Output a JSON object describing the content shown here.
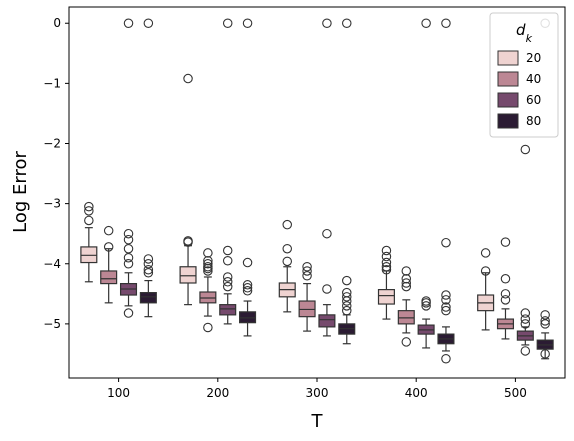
{
  "chart_data": {
    "type": "box",
    "xlabel": "T",
    "ylabel": "Log Error",
    "x_categories": [
      "100",
      "200",
      "300",
      "400",
      "500"
    ],
    "ylim": [
      -5.9,
      0.27
    ],
    "yticks": [
      0,
      -1,
      -2,
      -3,
      -4,
      -5
    ],
    "ytick_labels": [
      "0",
      "−1",
      "−2",
      "−3",
      "−4",
      "−5"
    ],
    "grid": false,
    "legend": {
      "title_base": "d",
      "title_sub": "k",
      "placement": "top-right",
      "entries": [
        "20",
        "40",
        "60",
        "80"
      ]
    },
    "hue_colors": [
      "#efd3d1",
      "#bc8794",
      "#764a6d",
      "#2b1b33"
    ],
    "series": [
      {
        "name": "20",
        "boxes": [
          {
            "q1": -3.98,
            "median": -3.86,
            "q3": -3.72,
            "whisker_low": -4.3,
            "whisker_high": -3.4,
            "outliers": [
              -3.05,
              -3.12,
              -3.28
            ]
          },
          {
            "q1": -4.32,
            "median": -4.2,
            "q3": -4.05,
            "whisker_low": -4.68,
            "whisker_high": -3.7,
            "outliers": [
              -0.92,
              -3.62,
              -3.64
            ]
          },
          {
            "q1": -4.55,
            "median": -4.43,
            "q3": -4.32,
            "whisker_low": -4.8,
            "whisker_high": -4.05,
            "outliers": [
              -3.35,
              -3.75,
              -3.96
            ]
          },
          {
            "q1": -4.67,
            "median": -4.53,
            "q3": -4.43,
            "whisker_low": -4.92,
            "whisker_high": -4.12,
            "outliers": [
              -3.78,
              -3.88,
              -3.98,
              -4.05,
              -4.1
            ]
          },
          {
            "q1": -4.78,
            "median": -4.65,
            "q3": -4.52,
            "whisker_low": -5.1,
            "whisker_high": -4.15,
            "outliers": [
              -3.82,
              -4.12
            ]
          }
        ]
      },
      {
        "name": "40",
        "boxes": [
          {
            "q1": -4.33,
            "median": -4.25,
            "q3": -4.12,
            "whisker_low": -4.65,
            "whisker_high": -3.75,
            "outliers": [
              -3.45,
              -3.72
            ]
          },
          {
            "q1": -4.65,
            "median": -4.57,
            "q3": -4.47,
            "whisker_low": -4.87,
            "whisker_high": -4.22,
            "outliers": [
              -3.82,
              -3.95,
              -4.0,
              -4.05,
              -4.08,
              -4.12,
              -5.06
            ]
          },
          {
            "q1": -4.88,
            "median": -4.76,
            "q3": -4.62,
            "whisker_low": -5.12,
            "whisker_high": -4.33,
            "outliers": [
              -4.05,
              -4.12,
              -4.2
            ]
          },
          {
            "q1": -5.0,
            "median": -4.9,
            "q3": -4.78,
            "whisker_low": -5.15,
            "whisker_high": -4.6,
            "outliers": [
              -4.12,
              -4.25,
              -4.32,
              -4.38,
              -5.3
            ]
          },
          {
            "q1": -5.08,
            "median": -5.0,
            "q3": -4.92,
            "whisker_low": -5.25,
            "whisker_high": -4.75,
            "outliers": [
              -3.64,
              -4.25,
              -4.5,
              -4.6
            ]
          }
        ]
      },
      {
        "name": "60",
        "boxes": [
          {
            "q1": -4.52,
            "median": -4.42,
            "q3": -4.33,
            "whisker_low": -4.7,
            "whisker_high": -4.15,
            "outliers": [
              0.0,
              -3.5,
              -3.6,
              -3.75,
              -3.9,
              -4.0,
              -4.82
            ]
          },
          {
            "q1": -4.85,
            "median": -4.75,
            "q3": -4.68,
            "whisker_low": -5.0,
            "whisker_high": -4.5,
            "outliers": [
              0.0,
              -3.78,
              -3.95,
              -4.22,
              -4.3,
              -4.38
            ]
          },
          {
            "q1": -5.05,
            "median": -4.93,
            "q3": -4.85,
            "whisker_low": -5.2,
            "whisker_high": -4.68,
            "outliers": [
              0.0,
              -3.5,
              -4.42
            ]
          },
          {
            "q1": -5.17,
            "median": -5.1,
            "q3": -5.02,
            "whisker_low": -5.4,
            "whisker_high": -4.92,
            "outliers": [
              0.0,
              -4.62,
              -4.65,
              -4.7
            ]
          },
          {
            "q1": -5.27,
            "median": -5.2,
            "q3": -5.12,
            "whisker_low": -5.35,
            "whisker_high": -5.05,
            "outliers": [
              -2.1,
              -4.82,
              -4.92,
              -5.0,
              -5.45
            ]
          }
        ]
      },
      {
        "name": "80",
        "boxes": [
          {
            "q1": -4.65,
            "median": -4.55,
            "q3": -4.48,
            "whisker_low": -4.88,
            "whisker_high": -4.28,
            "outliers": [
              0.0,
              -3.92,
              -4.0,
              -4.1,
              -4.15
            ]
          },
          {
            "q1": -4.98,
            "median": -4.9,
            "q3": -4.8,
            "whisker_low": -5.2,
            "whisker_high": -4.62,
            "outliers": [
              0.0,
              -3.98,
              -4.35,
              -4.4,
              -4.45
            ]
          },
          {
            "q1": -5.17,
            "median": -5.08,
            "q3": -5.0,
            "whisker_low": -5.33,
            "whisker_high": -4.85,
            "outliers": [
              0.0,
              -4.28,
              -4.48,
              -4.55,
              -4.62,
              -4.7,
              -4.78
            ]
          },
          {
            "q1": -5.33,
            "median": -5.25,
            "q3": -5.17,
            "whisker_low": -5.45,
            "whisker_high": -5.05,
            "outliers": [
              0.0,
              -3.65,
              -4.52,
              -4.6,
              -4.72,
              -4.78,
              -5.58
            ]
          },
          {
            "q1": -5.42,
            "median": -5.35,
            "q3": -5.27,
            "whisker_low": -5.58,
            "whisker_high": -5.15,
            "outliers": [
              0.0,
              -4.85,
              -4.95,
              -5.0,
              -5.5
            ]
          }
        ]
      }
    ]
  }
}
